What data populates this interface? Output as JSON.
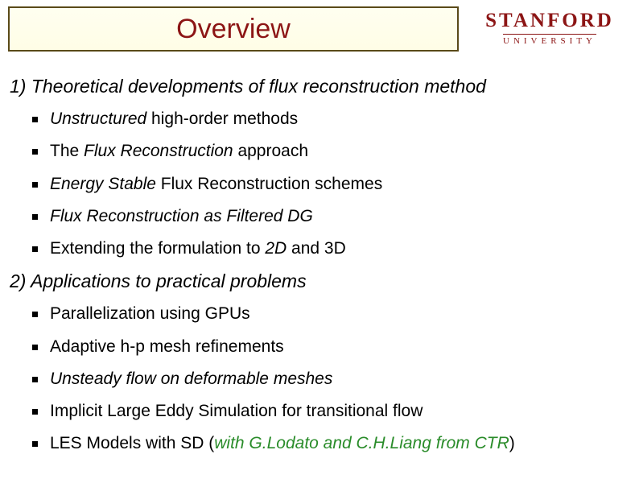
{
  "title": "Overview",
  "logo": {
    "main": "STANFORD",
    "sub": "UNIVERSITY"
  },
  "colors": {
    "brand": "#8c1515",
    "title_border": "#5a4a18",
    "title_bg_top": "#fffff0",
    "title_bg_bottom": "#fffde6",
    "bullet": "#000000",
    "green": "#2a8c2a",
    "text": "#000000",
    "background": "#ffffff"
  },
  "typography": {
    "title_fontsize": 34,
    "section_fontsize": 23,
    "item_fontsize": 21,
    "logo_main_fontsize": 25,
    "logo_sub_fontsize": 11
  },
  "sections": [
    {
      "heading": "1) Theoretical developments of flux reconstruction method",
      "items": [
        {
          "html": "<span class='it'>Unstructured</span> high-order methods"
        },
        {
          "html": "The <span class='it'>Flux Reconstruction</span> approach"
        },
        {
          "html": "<span class='it'>Energy Stable</span> Flux Reconstruction schemes"
        },
        {
          "html": "<span class='it'>Flux Reconstruction as Filtered DG</span>"
        },
        {
          "html": "Extending the formulation to <span class='it'>2D</span> and 3D"
        }
      ]
    },
    {
      "heading": "2) Applications to practical problems",
      "items": [
        {
          "html": "Parallelization using GPUs"
        },
        {
          "html": "Adaptive h-p mesh refinements"
        },
        {
          "html": "<span class='it'>Unsteady flow on deformable meshes</span>"
        },
        {
          "html": "Implicit Large Eddy Simulation for transitional flow"
        },
        {
          "html": "LES Models with SD (<span class='green'>with G.Lodato and C.H.Liang from CTR</span>)"
        }
      ]
    }
  ]
}
